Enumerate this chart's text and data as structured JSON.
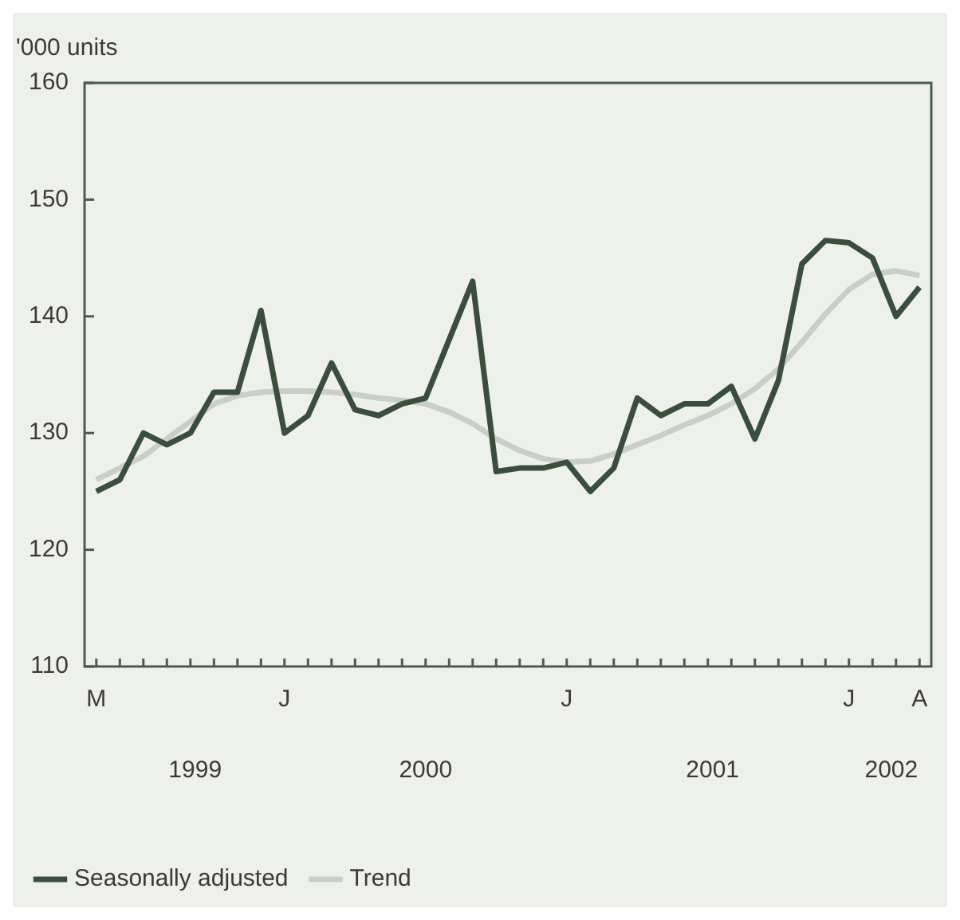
{
  "chart_data": {
    "type": "line",
    "ylabel": "'000 units",
    "categories": [
      "M",
      null,
      null,
      null,
      null,
      null,
      null,
      null,
      "J",
      null,
      null,
      null,
      null,
      null,
      null,
      null,
      null,
      null,
      null,
      null,
      "J",
      null,
      null,
      null,
      null,
      null,
      null,
      null,
      null,
      null,
      null,
      null,
      "J",
      null,
      null,
      "A"
    ],
    "series": [
      {
        "name": "Seasonally adjusted",
        "color": "#3b4e3e",
        "values": [
          125,
          126,
          130,
          129,
          130,
          133.5,
          133.5,
          140.5,
          130,
          131.5,
          136,
          132,
          131.5,
          132.5,
          133,
          138,
          143,
          126.7,
          127,
          127,
          127.5,
          125,
          127,
          133,
          131.5,
          132.5,
          132.5,
          134,
          129.5,
          134.5,
          144.5,
          146.5,
          146.3,
          145,
          140,
          142.5
        ]
      },
      {
        "name": "Trend",
        "color": "#c9cfc7",
        "values": [
          126,
          127,
          128,
          129.5,
          131,
          132.5,
          133.2,
          133.5,
          133.6,
          133.6,
          133.5,
          133.3,
          133,
          132.8,
          132.5,
          131.8,
          130.8,
          129.5,
          128.5,
          127.8,
          127.5,
          127.6,
          128.2,
          129,
          129.8,
          130.7,
          131.5,
          132.5,
          133.8,
          135.5,
          137.8,
          140.2,
          142.3,
          143.6,
          143.9,
          143.5
        ]
      }
    ],
    "ylim": [
      110,
      160
    ],
    "yticks": [
      110,
      120,
      130,
      140,
      150,
      160
    ],
    "grid": false,
    "legend": "bottom left",
    "marker": "none",
    "line_style": "solid",
    "annotations": [
      "1999",
      "2000",
      "2001",
      "2002"
    ]
  }
}
